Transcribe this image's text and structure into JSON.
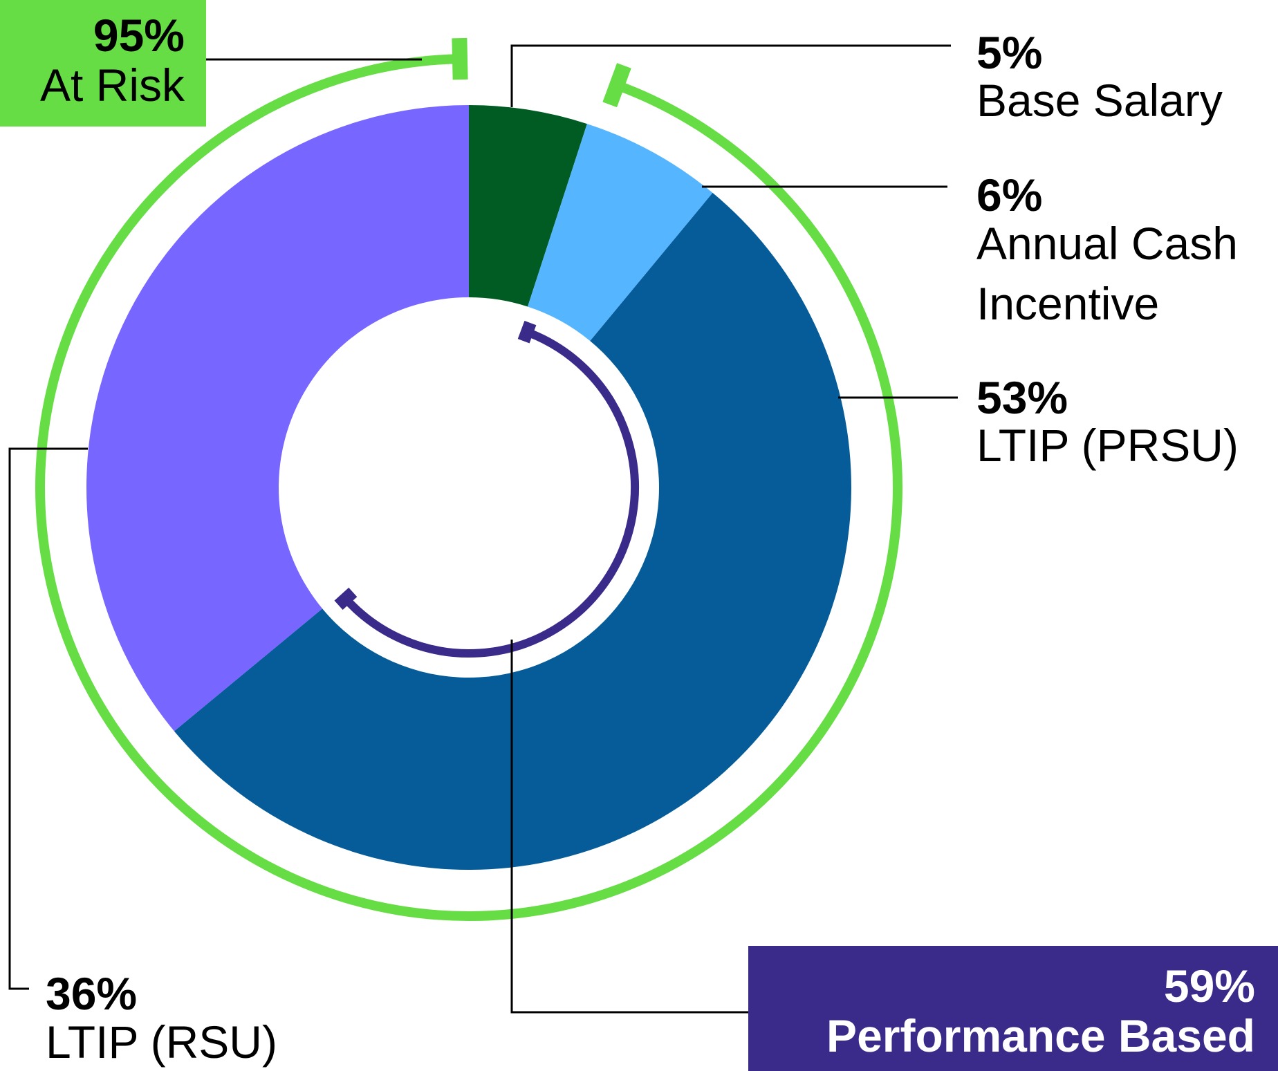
{
  "chart_data": {
    "type": "pie",
    "donut": true,
    "slices": [
      {
        "label": "Base Salary",
        "percent_text": "5%",
        "value": 5,
        "color": "#005c22"
      },
      {
        "label": "Annual Cash Incentive",
        "label_lines": [
          "Annual Cash",
          "Incentive"
        ],
        "percent_text": "6%",
        "value": 6,
        "color": "#55b6ff"
      },
      {
        "label": "LTIP (PRSU)",
        "percent_text": "53%",
        "value": 53,
        "color": "#055c98"
      },
      {
        "label": "LTIP (RSU)",
        "percent_text": "36%",
        "value": 36,
        "color": "#7766ff"
      }
    ],
    "groups": [
      {
        "label": "At Risk",
        "percent_text": "95%",
        "value": 95,
        "color": "#66dd44",
        "text_color": "#000000"
      },
      {
        "label": "Performance Based",
        "percent_text": "59%",
        "value": 59,
        "color": "#3a2a8a",
        "text_color": "#ffffff"
      }
    ]
  }
}
